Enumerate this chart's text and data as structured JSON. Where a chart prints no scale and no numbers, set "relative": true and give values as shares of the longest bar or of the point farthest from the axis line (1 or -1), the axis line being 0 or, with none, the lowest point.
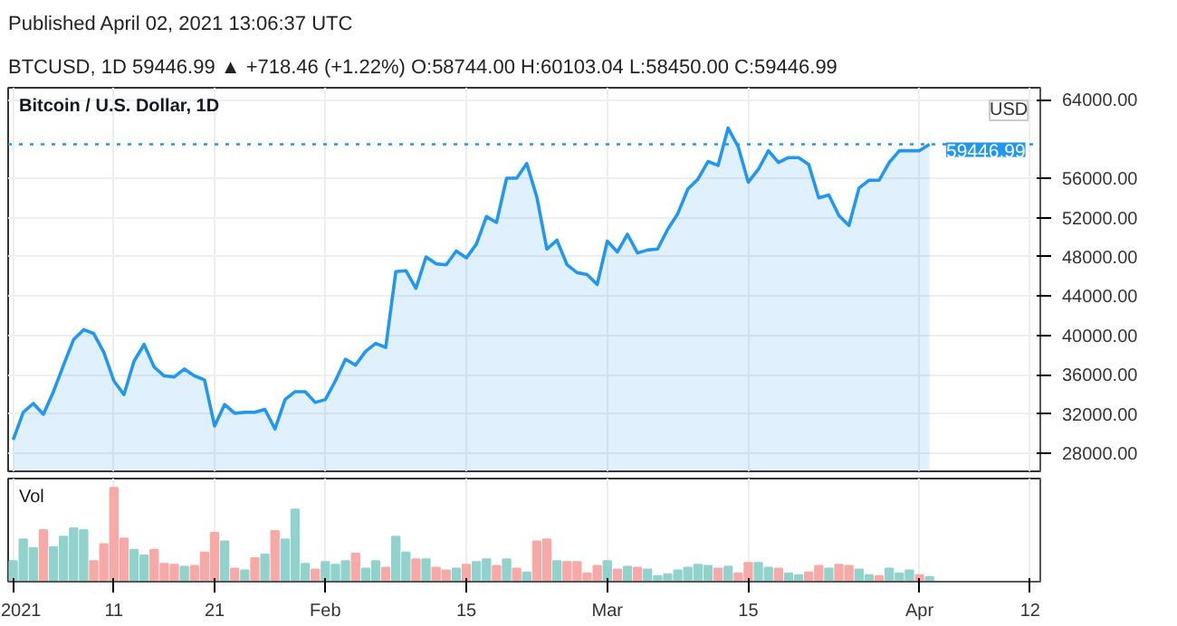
{
  "chart_data": [
    {
      "type": "area",
      "title": "Bitcoin / U.S. Dollar, 1D",
      "annotations": [
        "Published April 02, 2021 13:06:37 UTC",
        "BTCUSD, 1D  59446.99 ▲ +718.46 (+1.22%)  O:58744.00  H:60103.04  L:58450.00  C:59446.99",
        "USD"
      ],
      "x": [
        "2021-01-01",
        "2021-01-02",
        "2021-01-03",
        "2021-01-04",
        "2021-01-05",
        "2021-01-06",
        "2021-01-07",
        "2021-01-08",
        "2021-01-09",
        "2021-01-10",
        "2021-01-11",
        "2021-01-12",
        "2021-01-13",
        "2021-01-14",
        "2021-01-15",
        "2021-01-16",
        "2021-01-17",
        "2021-01-18",
        "2021-01-19",
        "2021-01-20",
        "2021-01-21",
        "2021-01-22",
        "2021-01-23",
        "2021-01-24",
        "2021-01-25",
        "2021-01-26",
        "2021-01-27",
        "2021-01-28",
        "2021-01-29",
        "2021-01-30",
        "2021-01-31",
        "2021-02-01",
        "2021-02-02",
        "2021-02-03",
        "2021-02-04",
        "2021-02-05",
        "2021-02-06",
        "2021-02-07",
        "2021-02-08",
        "2021-02-09",
        "2021-02-10",
        "2021-02-11",
        "2021-02-12",
        "2021-02-13",
        "2021-02-14",
        "2021-02-15",
        "2021-02-16",
        "2021-02-17",
        "2021-02-18",
        "2021-02-19",
        "2021-02-20",
        "2021-02-21",
        "2021-02-22",
        "2021-02-23",
        "2021-02-24",
        "2021-02-25",
        "2021-02-26",
        "2021-02-27",
        "2021-02-28",
        "2021-03-01",
        "2021-03-02",
        "2021-03-03",
        "2021-03-04",
        "2021-03-05",
        "2021-03-06",
        "2021-03-07",
        "2021-03-08",
        "2021-03-09",
        "2021-03-10",
        "2021-03-11",
        "2021-03-12",
        "2021-03-13",
        "2021-03-14",
        "2021-03-15",
        "2021-03-16",
        "2021-03-17",
        "2021-03-18",
        "2021-03-19",
        "2021-03-20",
        "2021-03-21",
        "2021-03-22",
        "2021-03-23",
        "2021-03-24",
        "2021-03-25",
        "2021-03-26",
        "2021-03-27",
        "2021-03-28",
        "2021-03-29",
        "2021-03-30",
        "2021-03-31",
        "2021-04-01",
        "2021-04-02"
      ],
      "color": "#2196f3",
      "values": [
        29400,
        32200,
        33100,
        32000,
        34300,
        37000,
        39600,
        40600,
        40200,
        38300,
        35400,
        34000,
        37400,
        39100,
        36800,
        35900,
        35800,
        36600,
        35900,
        35500,
        30800,
        33000,
        32100,
        32200,
        32200,
        32500,
        30500,
        33500,
        34300,
        34300,
        33200,
        33500,
        35400,
        37600,
        37000,
        38400,
        39200,
        38800,
        46500,
        46600,
        44800,
        48000,
        47300,
        47200,
        48600,
        47900,
        49300,
        52100,
        51500,
        56000,
        56000,
        57500,
        54100,
        48800,
        49700,
        47200,
        46400,
        46200,
        45200,
        49600,
        48500,
        50300,
        48400,
        48700,
        48800,
        50800,
        52400,
        54900,
        55900,
        57700,
        57300,
        61100,
        59200,
        55600,
        56900,
        58800,
        57600,
        58100,
        58100,
        57400,
        54000,
        54300,
        52200,
        51200,
        55000,
        55800,
        55800,
        57600,
        58800,
        58800,
        58800,
        59446.99
      ],
      "xlim": [
        "2020-12-31T12:00",
        "2021-04-13"
      ],
      "xticks": [
        {
          "value": "2021-01-01",
          "label": null
        },
        {
          "value": "2021-01-11",
          "label": null
        },
        {
          "value": "2021-01-21",
          "label": null
        },
        {
          "value": "2021-02-01",
          "label": null
        },
        {
          "value": "2021-02-15",
          "label": null
        },
        {
          "value": "2021-03-01",
          "label": null
        },
        {
          "value": "2021-03-15",
          "label": null
        },
        {
          "value": "2021-04-01",
          "label": null
        },
        {
          "value": "2021-04-12",
          "label": null
        }
      ],
      "ylim": [
        26200,
        65200
      ],
      "yticks": [
        {
          "value": 28000,
          "label": "28000.00"
        },
        {
          "value": 32000,
          "label": "32000.00"
        },
        {
          "value": 36000,
          "label": "36000.00"
        },
        {
          "value": 40000,
          "label": "40000.00"
        },
        {
          "value": 44000,
          "label": "44000.00"
        },
        {
          "value": 48000,
          "label": "48000.00"
        },
        {
          "value": 52000,
          "label": "52000.00"
        },
        {
          "value": 56000,
          "label": "56000.00"
        },
        {
          "value": 64000,
          "label": "64000.00"
        }
      ],
      "ref_lines": [
        {
          "axis": "y",
          "value": 59446.99,
          "label": "59446.99",
          "color": "#2196f3",
          "line_style": "dotted"
        }
      ],
      "grid": true,
      "tick_labels": "y"
    },
    {
      "type": "bar",
      "title": "Vol",
      "relative": true,
      "grid": "x",
      "tick_labels": "x",
      "xlim": [
        "2020-12-31T12:00",
        "2021-04-13"
      ],
      "xticks": [
        {
          "value": "2021-01-01",
          "label": "2021"
        },
        {
          "value": "2021-01-11",
          "label": "11"
        },
        {
          "value": "2021-01-21",
          "label": "21"
        },
        {
          "value": "2021-02-01",
          "label": "Feb"
        },
        {
          "value": "2021-02-15",
          "label": "15"
        },
        {
          "value": "2021-03-01",
          "label": "Mar"
        },
        {
          "value": "2021-03-15",
          "label": "15"
        },
        {
          "value": "2021-04-01",
          "label": "Apr"
        },
        {
          "value": "2021-04-12",
          "label": "12"
        }
      ],
      "x": [
        "2021-01-01",
        "2021-01-02",
        "2021-01-03",
        "2021-01-04",
        "2021-01-05",
        "2021-01-06",
        "2021-01-07",
        "2021-01-08",
        "2021-01-09",
        "2021-01-10",
        "2021-01-11",
        "2021-01-12",
        "2021-01-13",
        "2021-01-14",
        "2021-01-15",
        "2021-01-16",
        "2021-01-17",
        "2021-01-18",
        "2021-01-19",
        "2021-01-20",
        "2021-01-21",
        "2021-01-22",
        "2021-01-23",
        "2021-01-24",
        "2021-01-25",
        "2021-01-26",
        "2021-01-27",
        "2021-01-28",
        "2021-01-29",
        "2021-01-30",
        "2021-01-31",
        "2021-02-01",
        "2021-02-02",
        "2021-02-03",
        "2021-02-04",
        "2021-02-05",
        "2021-02-06",
        "2021-02-07",
        "2021-02-08",
        "2021-02-09",
        "2021-02-10",
        "2021-02-11",
        "2021-02-12",
        "2021-02-13",
        "2021-02-14",
        "2021-02-15",
        "2021-02-16",
        "2021-02-17",
        "2021-02-18",
        "2021-02-19",
        "2021-02-20",
        "2021-02-21",
        "2021-02-22",
        "2021-02-23",
        "2021-02-24",
        "2021-02-25",
        "2021-02-26",
        "2021-02-27",
        "2021-02-28",
        "2021-03-01",
        "2021-03-02",
        "2021-03-03",
        "2021-03-04",
        "2021-03-05",
        "2021-03-06",
        "2021-03-07",
        "2021-03-08",
        "2021-03-09",
        "2021-03-10",
        "2021-03-11",
        "2021-03-12",
        "2021-03-13",
        "2021-03-14",
        "2021-03-15",
        "2021-03-16",
        "2021-03-17",
        "2021-03-18",
        "2021-03-19",
        "2021-03-20",
        "2021-03-21",
        "2021-03-22",
        "2021-03-23",
        "2021-03-24",
        "2021-03-25",
        "2021-03-26",
        "2021-03-27",
        "2021-03-28",
        "2021-03-29",
        "2021-03-30",
        "2021-03-31",
        "2021-04-01",
        "2021-04-02"
      ],
      "values": [
        0.22,
        0.45,
        0.36,
        0.55,
        0.37,
        0.48,
        0.57,
        0.55,
        0.22,
        0.4,
        1,
        0.46,
        0.34,
        0.28,
        0.34,
        0.19,
        0.18,
        0.16,
        0.17,
        0.31,
        0.52,
        0.43,
        0.14,
        0.12,
        0.25,
        0.29,
        0.54,
        0.45,
        0.77,
        0.19,
        0.13,
        0.21,
        0.18,
        0.22,
        0.3,
        0.14,
        0.22,
        0.15,
        0.48,
        0.31,
        0.24,
        0.24,
        0.15,
        0.12,
        0.14,
        0.18,
        0.21,
        0.24,
        0.17,
        0.24,
        0.14,
        0.1,
        0.43,
        0.45,
        0.22,
        0.21,
        0.21,
        0.09,
        0.17,
        0.22,
        0.13,
        0.16,
        0.15,
        0.13,
        0.06,
        0.08,
        0.12,
        0.15,
        0.18,
        0.17,
        0.14,
        0.16,
        0.09,
        0.2,
        0.2,
        0.15,
        0.14,
        0.09,
        0.07,
        0.1,
        0.17,
        0.14,
        0.18,
        0.17,
        0.13,
        0.07,
        0.06,
        0.14,
        0.09,
        0.12,
        0.07,
        0.05
      ],
      "colors": [
        "#92d2cc",
        "#92d2cc",
        "#92d2cc",
        "#f7a9a7",
        "#92d2cc",
        "#92d2cc",
        "#92d2cc",
        "#92d2cc",
        "#f7a9a7",
        "#f7a9a7",
        "#f7a9a7",
        "#f7a9a7",
        "#92d2cc",
        "#92d2cc",
        "#f7a9a7",
        "#f7a9a7",
        "#f7a9a7",
        "#92d2cc",
        "#f7a9a7",
        "#f7a9a7",
        "#f7a9a7",
        "#92d2cc",
        "#f7a9a7",
        "#92d2cc",
        "#f7a9a7",
        "#92d2cc",
        "#f7a9a7",
        "#92d2cc",
        "#92d2cc",
        "#92d2cc",
        "#f7a9a7",
        "#92d2cc",
        "#92d2cc",
        "#92d2cc",
        "#f7a9a7",
        "#92d2cc",
        "#92d2cc",
        "#f7a9a7",
        "#92d2cc",
        "#92d2cc",
        "#f7a9a7",
        "#92d2cc",
        "#f7a9a7",
        "#f7a9a7",
        "#92d2cc",
        "#f7a9a7",
        "#92d2cc",
        "#92d2cc",
        "#f7a9a7",
        "#92d2cc",
        "#f7a9a7",
        "#92d2cc",
        "#f7a9a7",
        "#f7a9a7",
        "#92d2cc",
        "#f7a9a7",
        "#f7a9a7",
        "#f7a9a7",
        "#f7a9a7",
        "#92d2cc",
        "#f7a9a7",
        "#92d2cc",
        "#f7a9a7",
        "#92d2cc",
        "#92d2cc",
        "#92d2cc",
        "#92d2cc",
        "#92d2cc",
        "#92d2cc",
        "#92d2cc",
        "#f7a9a7",
        "#92d2cc",
        "#f7a9a7",
        "#f7a9a7",
        "#92d2cc",
        "#92d2cc",
        "#f7a9a7",
        "#92d2cc",
        "#92d2cc",
        "#f7a9a7",
        "#f7a9a7",
        "#92d2cc",
        "#f7a9a7",
        "#f7a9a7",
        "#92d2cc",
        "#92d2cc",
        "#f7a9a7",
        "#92d2cc",
        "#92d2cc",
        "#92d2cc",
        "#f7a9a7",
        "#92d2cc"
      ]
    }
  ]
}
